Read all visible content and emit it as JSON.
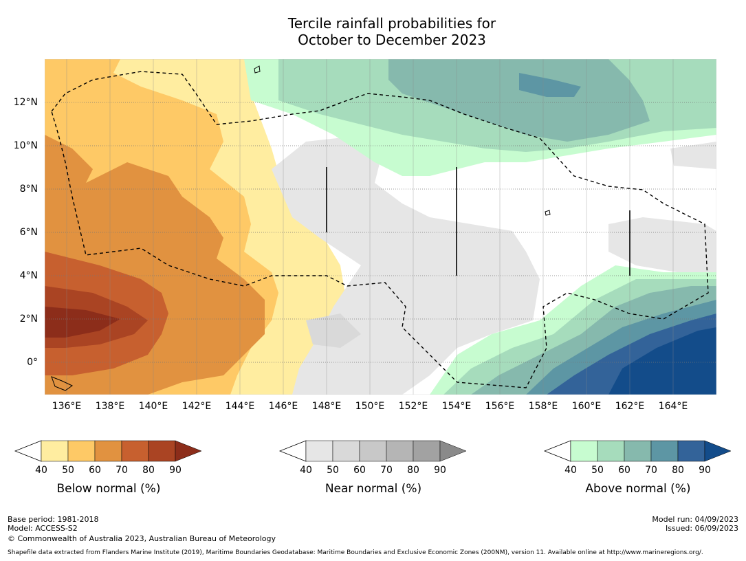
{
  "title_line1": "Tercile rainfall probabilities for",
  "title_line2": "October to December 2023",
  "x_ticks": [
    "136°E",
    "138°E",
    "140°E",
    "142°E",
    "144°E",
    "146°E",
    "148°E",
    "150°E",
    "152°E",
    "154°E",
    "156°E",
    "158°E",
    "160°E",
    "162°E",
    "164°E"
  ],
  "y_ticks": [
    "12°N",
    "10°N",
    "8°N",
    "6°N",
    "4°N",
    "2°N",
    "0°"
  ],
  "colorbars": [
    {
      "title": "Below normal (%)",
      "levels": [
        "40",
        "50",
        "60",
        "70",
        "80",
        "90"
      ],
      "colors": [
        "#ffeda0",
        "#fec966",
        "#e19240",
        "#c7602f",
        "#aa4423",
        "#8c2d1a"
      ]
    },
    {
      "title": "Near normal (%)",
      "levels": [
        "40",
        "50",
        "60",
        "70",
        "80",
        "90"
      ],
      "colors": [
        "#e6e6e6",
        "#d9d9d9",
        "#c8c8c8",
        "#b5b5b5",
        "#a2a2a2",
        "#8a8a8a"
      ]
    },
    {
      "title": "Above normal (%)",
      "levels": [
        "40",
        "50",
        "60",
        "70",
        "80",
        "90"
      ],
      "colors": [
        "#c7fcd0",
        "#a6dcbc",
        "#86b9ad",
        "#5d96a4",
        "#336399",
        "#134c8a"
      ]
    }
  ],
  "footer": {
    "base_period": "Base period: 1981-2018",
    "model": "Model: ACCESS-S2",
    "copyright": "© Commonwealth of Australia 2023, Australian Bureau of Meteorology",
    "model_run": "Model run: 04/09/2023",
    "issued": "Issued: 06/09/2023",
    "shapefile": "Shapefile data extracted from Flanders Marine Institute (2019), Maritime Boundaries Geodatabase: Maritime Boundaries and Exclusive Economic Zones (200NM), version 11. Available online at http://www.marineregions.org/."
  }
}
